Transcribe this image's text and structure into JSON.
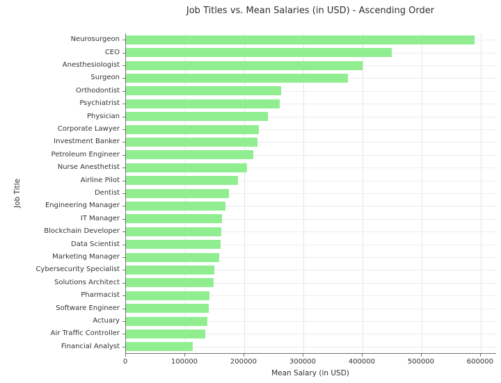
{
  "title": "Job Titles vs. Mean Salaries (in USD) - Ascending Order",
  "chart_data": {
    "type": "bar",
    "orientation": "horizontal",
    "title": "Job Titles vs. Mean Salaries (in USD) - Ascending Order",
    "xlabel": "Mean Salary (in USD)",
    "ylabel": "Job Title",
    "sort": "ascending (longest bar at top of axis)",
    "categories": [
      "Neurosurgeon",
      "CEO",
      "Anesthesiologist",
      "Surgeon",
      "Orthodontist",
      "Psychiatrist",
      "Physician",
      "Corporate Lawyer",
      "Investment Banker",
      "Petroleum Engineer",
      "Nurse Anesthetist",
      "Airline Pilot",
      "Dentist",
      "Engineering Manager",
      "IT Manager",
      "Blockchain Developer",
      "Data Scientist",
      "Marketing Manager",
      "Cybersecurity Specialist",
      "Solutions Architect",
      "Pharmacist",
      "Software Engineer",
      "Actuary",
      "Air Traffic Controller",
      "Financial Analyst"
    ],
    "values": [
      590000,
      450000,
      400000,
      375000,
      262000,
      260000,
      240000,
      225000,
      222000,
      215000,
      205000,
      190000,
      174000,
      168000,
      162000,
      161000,
      160000,
      158000,
      150000,
      148000,
      141000,
      140000,
      138000,
      134000,
      113000
    ],
    "xticks": [
      0,
      100000,
      200000,
      300000,
      400000,
      500000,
      600000
    ],
    "xlim": [
      0,
      626000
    ],
    "grid": true,
    "legend": false,
    "bar_color": "#90EE90",
    "grid_color": "#e4e4e4",
    "spine_color": "#6f6f6f",
    "text_color": "#333333"
  }
}
